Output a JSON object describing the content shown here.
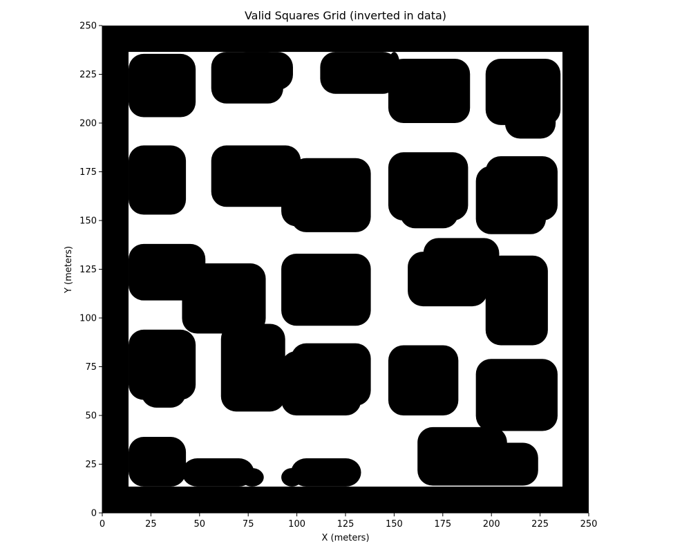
{
  "chart_data": {
    "type": "heatmap",
    "title": "Valid Squares Grid (inverted in data)",
    "xlabel": "X (meters)",
    "ylabel": "Y (meters)",
    "xlim": [
      0,
      250
    ],
    "ylim": [
      0,
      250
    ],
    "xticks": [
      "0",
      "25",
      "50",
      "75",
      "100",
      "125",
      "150",
      "175",
      "200",
      "225",
      "250"
    ],
    "yticks": [
      "0",
      "25",
      "50",
      "75",
      "100",
      "125",
      "150",
      "175",
      "200",
      "225",
      "250"
    ],
    "grid": false,
    "colors": {
      "occupied": "#000000",
      "free": "#ffffff"
    },
    "background_value": "occupied",
    "free_region": [
      13.5,
      13.5,
      236.5,
      236.5
    ],
    "obstacles": [
      [
        13.5,
        203,
        48,
        235.5
      ],
      [
        56,
        210,
        93,
        236.5
      ],
      [
        66,
        217,
        98,
        236.5
      ],
      [
        112,
        215,
        152,
        236.5
      ],
      [
        147,
        220,
        153,
        236.5
      ],
      [
        147,
        200,
        189,
        233
      ],
      [
        160,
        204,
        188,
        228
      ],
      [
        197,
        199,
        235.5,
        233
      ],
      [
        207,
        192,
        233,
        226
      ],
      [
        13.5,
        153,
        43,
        188.5
      ],
      [
        56,
        157,
        102,
        188.5
      ],
      [
        97,
        144,
        138,
        182
      ],
      [
        92,
        147,
        132,
        180
      ],
      [
        147,
        150,
        188,
        185
      ],
      [
        153,
        146,
        183,
        178
      ],
      [
        192,
        143,
        228,
        178
      ],
      [
        197,
        150,
        234,
        183
      ],
      [
        13.5,
        109,
        53,
        138
      ],
      [
        41,
        92,
        84,
        128
      ],
      [
        92,
        96,
        138,
        133
      ],
      [
        97,
        100,
        133,
        124
      ],
      [
        157,
        106,
        198,
        134
      ],
      [
        165,
        110,
        204,
        141
      ],
      [
        197,
        86,
        229,
        132
      ],
      [
        13.5,
        58,
        48,
        94
      ],
      [
        20,
        54,
        43,
        90
      ],
      [
        61,
        52,
        94,
        97
      ],
      [
        92,
        50,
        133,
        83
      ],
      [
        97,
        55,
        138,
        87
      ],
      [
        147,
        50,
        183,
        86
      ],
      [
        192,
        42,
        234,
        79
      ],
      [
        162,
        14,
        208,
        44
      ],
      [
        182,
        14,
        224,
        36
      ],
      [
        13.5,
        13.5,
        43,
        39
      ],
      [
        41,
        13.5,
        78,
        28
      ],
      [
        71,
        13.5,
        83,
        23
      ],
      [
        97,
        13.5,
        133,
        28
      ],
      [
        92,
        13.5,
        103,
        23
      ]
    ]
  }
}
